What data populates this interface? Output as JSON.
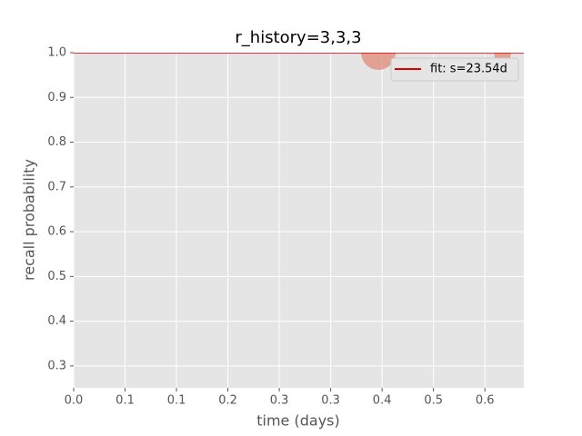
{
  "chart_data": {
    "type": "scatter",
    "title": "r_history=3,3,3",
    "x_label": "time (days)",
    "y_label": "recall probability",
    "xlim": [
      0,
      0.613
    ],
    "ylim": [
      0.251,
      1.0
    ],
    "xticks": [
      {
        "value": 0,
        "label": "0.0"
      },
      {
        "value": 0.07,
        "label": "0.1"
      },
      {
        "value": 0.14,
        "label": "0.1"
      },
      {
        "value": 0.21,
        "label": "0.2"
      },
      {
        "value": 0.28,
        "label": "0.3"
      },
      {
        "value": 0.35,
        "label": "0.3"
      },
      {
        "value": 0.42,
        "label": "0.4"
      },
      {
        "value": 0.49,
        "label": "0.5"
      },
      {
        "value": 0.56,
        "label": "0.6"
      }
    ],
    "yticks": [
      {
        "value": 0.3,
        "label": "0.3"
      },
      {
        "value": 0.4,
        "label": "0.4"
      },
      {
        "value": 0.5,
        "label": "0.5"
      },
      {
        "value": 0.6,
        "label": "0.6"
      },
      {
        "value": 0.7,
        "label": "0.7"
      },
      {
        "value": 0.8,
        "label": "0.8"
      },
      {
        "value": 0.9,
        "label": "0.9"
      },
      {
        "value": 1.0,
        "label": "1.0"
      }
    ],
    "grid": true,
    "legend_position": "upper right",
    "points": {
      "color": "#e0917f",
      "x": [
        0.415,
        0.584
      ],
      "y": [
        1.0,
        0.996
      ],
      "sizes": [
        19,
        9
      ]
    },
    "series": [
      {
        "name": "fit: s=23.54d",
        "color": "#e00000",
        "x": [
          0,
          0.613
        ],
        "values": [
          1.0,
          1.0
        ]
      }
    ]
  }
}
